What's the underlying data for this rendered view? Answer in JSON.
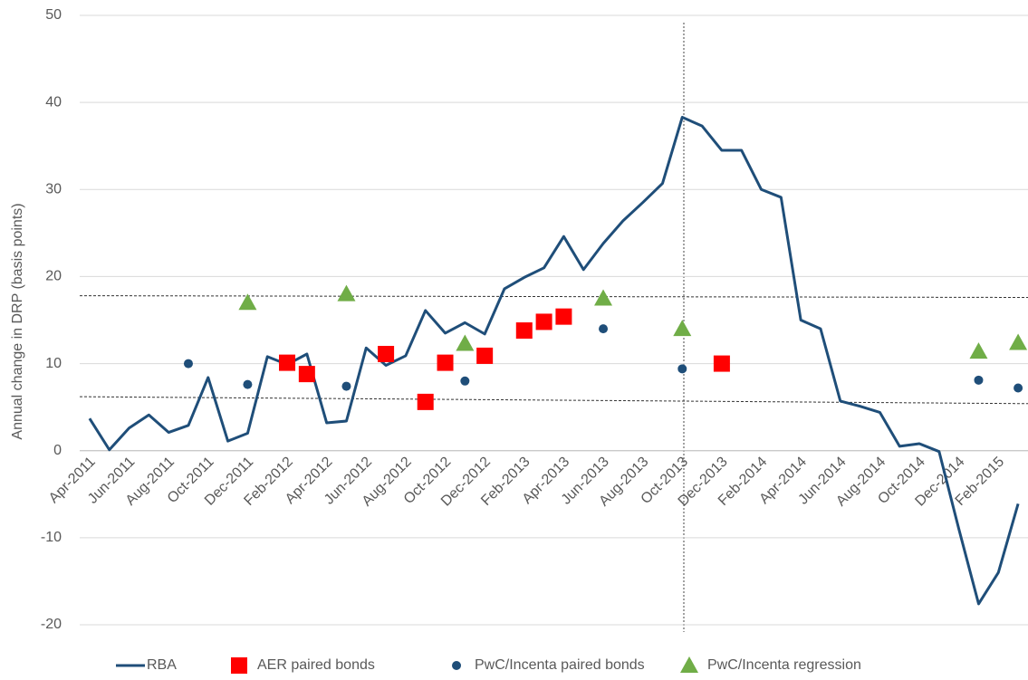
{
  "chart_data": {
    "type": "line",
    "y_label": "Annual change in DRP (basis points)",
    "categories": [
      "Apr-2011",
      null,
      "Jun-2011",
      null,
      "Aug-2011",
      null,
      "Oct-2011",
      null,
      "Dec-2011",
      null,
      "Feb-2012",
      null,
      "Apr-2012",
      null,
      "Jun-2012",
      null,
      "Aug-2012",
      null,
      "Oct-2012",
      null,
      "Dec-2012",
      null,
      "Feb-2013",
      null,
      "Apr-2013",
      null,
      "Jun-2013",
      null,
      "Aug-2013",
      null,
      "Oct-2013",
      null,
      "Dec-2013",
      null,
      "Feb-2014",
      null,
      "Apr-2014",
      null,
      "Jun-2014",
      null,
      "Aug-2014",
      null,
      "Oct-2014",
      null,
      "Dec-2014",
      null,
      "Feb-2015",
      null
    ],
    "series": [
      {
        "name": "RBA",
        "color": "#1f4e79",
        "marker": "line",
        "values": [
          3.7,
          0.1,
          2.6,
          4.1,
          2.1,
          2.9,
          8.4,
          1.1,
          2.0,
          10.8,
          9.9,
          11.1,
          3.2,
          3.4,
          11.8,
          9.8,
          10.9,
          16.1,
          13.5,
          14.7,
          13.4,
          18.6,
          19.9,
          21.0,
          24.6,
          20.8,
          23.8,
          26.4,
          28.5,
          30.7,
          38.3,
          37.3,
          34.5,
          34.5,
          30.0,
          29.1,
          15.0,
          14.0,
          5.7,
          5.1,
          4.4,
          0.5,
          0.8,
          -0.1,
          -9.0,
          -17.6,
          -14.0,
          -6.1
        ]
      },
      {
        "name": "AER paired bonds",
        "color": "#ff0000",
        "marker": "square",
        "values": [
          null,
          null,
          null,
          null,
          null,
          null,
          null,
          null,
          null,
          null,
          10.1,
          8.8,
          null,
          null,
          null,
          11.1,
          null,
          5.6,
          10.1,
          null,
          10.9,
          null,
          13.8,
          14.8,
          15.4,
          null,
          null,
          null,
          null,
          null,
          null,
          null,
          10.0,
          null,
          null,
          null,
          null,
          null,
          null,
          null,
          null,
          null,
          null,
          null,
          null,
          null,
          null,
          null
        ]
      },
      {
        "name": "PwC/Incenta paired bonds",
        "color": "#1f4e79",
        "marker": "circle",
        "values": [
          null,
          null,
          null,
          null,
          null,
          10.0,
          null,
          null,
          7.6,
          null,
          null,
          null,
          null,
          7.4,
          null,
          null,
          null,
          null,
          null,
          8.0,
          null,
          null,
          null,
          null,
          null,
          null,
          14.0,
          null,
          null,
          null,
          9.4,
          null,
          null,
          null,
          null,
          null,
          null,
          null,
          null,
          null,
          null,
          null,
          null,
          null,
          null,
          8.1,
          null,
          7.2
        ]
      },
      {
        "name": "PwC/Incenta regression",
        "color": "#70ad47",
        "marker": "triangle",
        "values": [
          null,
          null,
          null,
          null,
          null,
          null,
          null,
          null,
          17.0,
          null,
          null,
          null,
          null,
          18.0,
          null,
          null,
          null,
          null,
          null,
          12.3,
          null,
          null,
          null,
          null,
          null,
          null,
          17.5,
          null,
          null,
          null,
          14.0,
          null,
          null,
          null,
          null,
          null,
          null,
          null,
          null,
          null,
          null,
          null,
          null,
          null,
          null,
          11.4,
          null,
          12.4
        ]
      }
    ],
    "reference_lines": [
      [
        17.8,
        17.6
      ],
      [
        6.2,
        5.4
      ]
    ],
    "ylim": [
      -20,
      50
    ],
    "yticks": [
      -20,
      -10,
      0,
      10,
      20,
      30,
      40,
      50
    ],
    "grid": true
  }
}
